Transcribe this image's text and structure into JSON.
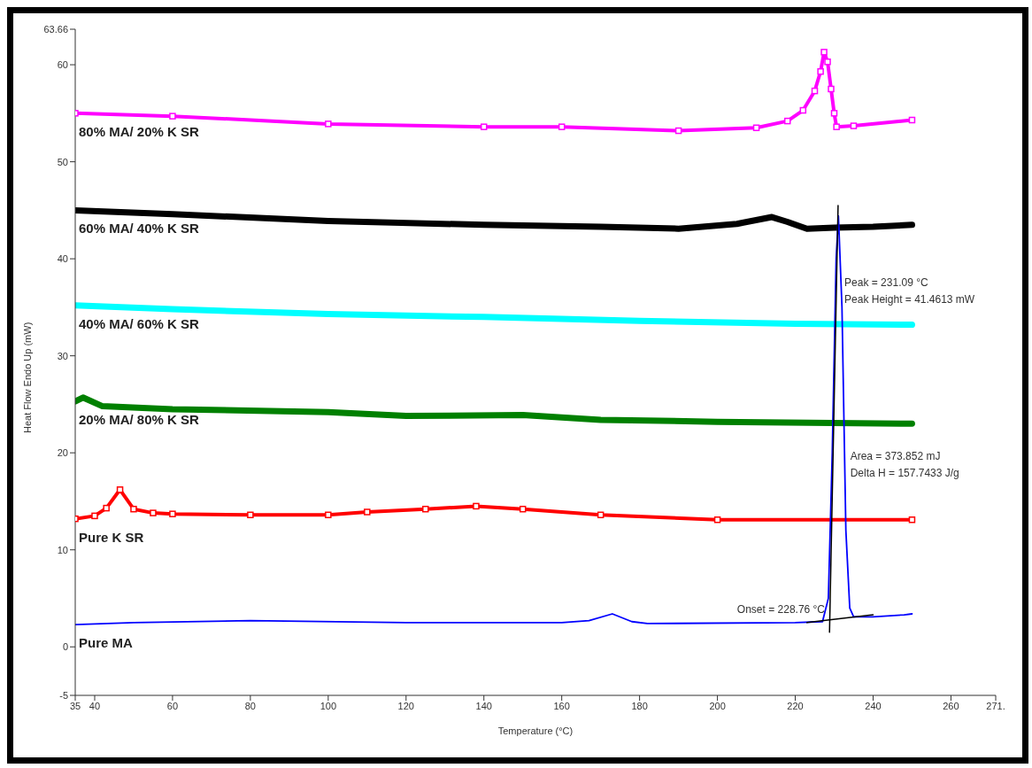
{
  "chart_data": {
    "type": "line",
    "xlabel": "Temperature (°C)",
    "ylabel": "Heat Flow Endo Up (mW)",
    "xlim": [
      35,
      271.5
    ],
    "xticks": [
      35,
      40,
      60,
      80,
      100,
      120,
      140,
      160,
      180,
      200,
      220,
      240,
      260,
      {
        "value": 271.5,
        "label": "271."
      }
    ],
    "ylim": [
      -5,
      63.66
    ],
    "yticks": [
      -5,
      0,
      10,
      20,
      30,
      40,
      50,
      60,
      63.66
    ],
    "grid": false,
    "legend": false,
    "series": [
      {
        "name": "80% MA/ 20% K SR",
        "color": "#ff00ff",
        "marker": "square",
        "x": [
          35,
          60,
          100,
          140,
          160,
          190,
          210,
          218,
          222,
          225,
          226.5,
          227.4,
          228.3,
          229.2,
          230,
          230.6,
          235,
          250
        ],
        "values": [
          55,
          54.7,
          53.9,
          53.6,
          53.6,
          53.2,
          53.5,
          54.2,
          55.3,
          57.3,
          59.3,
          61.3,
          60.3,
          57.5,
          55,
          53.6,
          53.7,
          54.3
        ]
      },
      {
        "name": "60% MA/ 40% K SR",
        "color": "#000000",
        "marker": "none",
        "x": [
          35,
          60,
          100,
          140,
          170,
          190,
          205,
          214,
          218,
          223,
          230,
          240,
          250
        ],
        "values": [
          45,
          44.6,
          43.9,
          43.5,
          43.3,
          43.1,
          43.6,
          44.3,
          43.8,
          43.1,
          43.2,
          43.3,
          43.5
        ]
      },
      {
        "name": "40% MA/ 60% K SR",
        "color": "#00ffff",
        "marker": "none",
        "x": [
          35,
          60,
          100,
          140,
          180,
          220,
          250
        ],
        "values": [
          35.2,
          34.8,
          34.3,
          34,
          33.6,
          33.3,
          33.2
        ]
      },
      {
        "name": "20% MA/ 80% K SR",
        "color": "#008000",
        "marker": "none",
        "x": [
          35,
          37,
          42,
          60,
          100,
          120,
          150,
          170,
          200,
          250
        ],
        "values": [
          25.3,
          25.7,
          24.8,
          24.5,
          24.2,
          23.8,
          23.9,
          23.4,
          23.2,
          23
        ]
      },
      {
        "name": "Pure K SR",
        "color": "#ff0000",
        "marker": "square",
        "x": [
          35,
          40,
          43,
          46.5,
          50,
          55,
          60,
          80,
          100,
          110,
          125,
          138,
          150,
          170,
          200,
          250
        ],
        "values": [
          13.2,
          13.5,
          14.3,
          16.2,
          14.2,
          13.8,
          13.7,
          13.6,
          13.6,
          13.9,
          14.2,
          14.5,
          14.2,
          13.6,
          13.1,
          13.1
        ]
      },
      {
        "name": "Pure MA",
        "color": "#0000ff",
        "marker": "none",
        "x": [
          35,
          50,
          80,
          120,
          160,
          167,
          173,
          178,
          182,
          220,
          227,
          228.5,
          229.5,
          230.5,
          231.09,
          232,
          233,
          234,
          235,
          240,
          248,
          250
        ],
        "values": [
          2.3,
          2.5,
          2.7,
          2.5,
          2.5,
          2.7,
          3.4,
          2.6,
          2.4,
          2.5,
          2.6,
          5,
          20,
          40,
          44.4,
          35,
          12,
          4,
          3.1,
          3.1,
          3.3,
          3.4
        ]
      },
      {
        "color": "#000000",
        "marker": "none",
        "x": [
          223,
          240
        ],
        "values": [
          2.5,
          3.3
        ]
      },
      {
        "color": "#000000",
        "marker": "none",
        "x": [
          228.8,
          231
        ],
        "values": [
          1.5,
          45.5
        ]
      }
    ],
    "annotations": [
      {
        "text": "Peak = 231.09 °C",
        "x": 231.5,
        "y": 37.6
      },
      {
        "text": "Peak Height = 41.4613 mW",
        "x": 231.5,
        "y": 35.8
      },
      {
        "text": "Area = 373.852 mJ",
        "x": 233,
        "y": 19.7
      },
      {
        "text": "Delta H = 157.7433 J/g",
        "x": 233,
        "y": 17.9
      },
      {
        "text": "Onset = 228.76 °C",
        "x": 228.76,
        "y": 2.6
      }
    ]
  }
}
